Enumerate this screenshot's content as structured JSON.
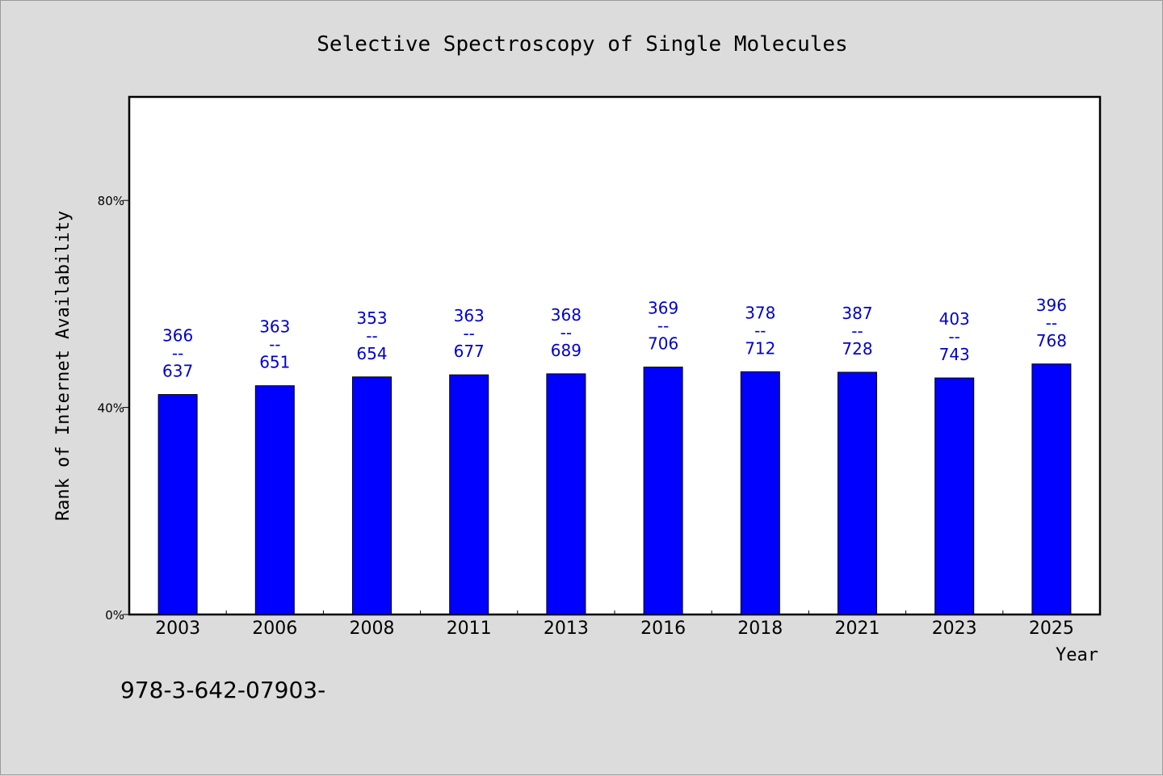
{
  "chart_data": {
    "type": "bar",
    "title": "Selective Spectroscopy of Single Molecules",
    "xlabel": "Year",
    "ylabel": "Rank of Internet Availability",
    "categories": [
      "2003",
      "2006",
      "2008",
      "2011",
      "2013",
      "2016",
      "2018",
      "2021",
      "2023",
      "2025"
    ],
    "series": [
      {
        "values": [
          42.5,
          44.2,
          45.9,
          46.3,
          46.5,
          47.8,
          46.9,
          46.8,
          45.7,
          48.4
        ]
      }
    ],
    "data_labels": [
      {
        "top": "366",
        "sep": "--",
        "bottom": "637"
      },
      {
        "top": "363",
        "sep": "--",
        "bottom": "651"
      },
      {
        "top": "353",
        "sep": "--",
        "bottom": "654"
      },
      {
        "top": "363",
        "sep": "--",
        "bottom": "677"
      },
      {
        "top": "368",
        "sep": "--",
        "bottom": "689"
      },
      {
        "top": "369",
        "sep": "--",
        "bottom": "706"
      },
      {
        "top": "378",
        "sep": "--",
        "bottom": "712"
      },
      {
        "top": "387",
        "sep": "--",
        "bottom": "728"
      },
      {
        "top": "403",
        "sep": "--",
        "bottom": "743"
      },
      {
        "top": "396",
        "sep": "--",
        "bottom": "768"
      }
    ],
    "ylim": [
      0,
      100
    ],
    "yticks": [
      0,
      40,
      80
    ],
    "ytick_labels": [
      "0%",
      "40%",
      "80%"
    ],
    "grid": false,
    "legend": "none",
    "bar_color": "#0000ff",
    "label_color": "#0000cc",
    "plot_background": "#ffffff",
    "page_background": "#dcdcdc"
  },
  "footnote": "978-3-642-07903-"
}
